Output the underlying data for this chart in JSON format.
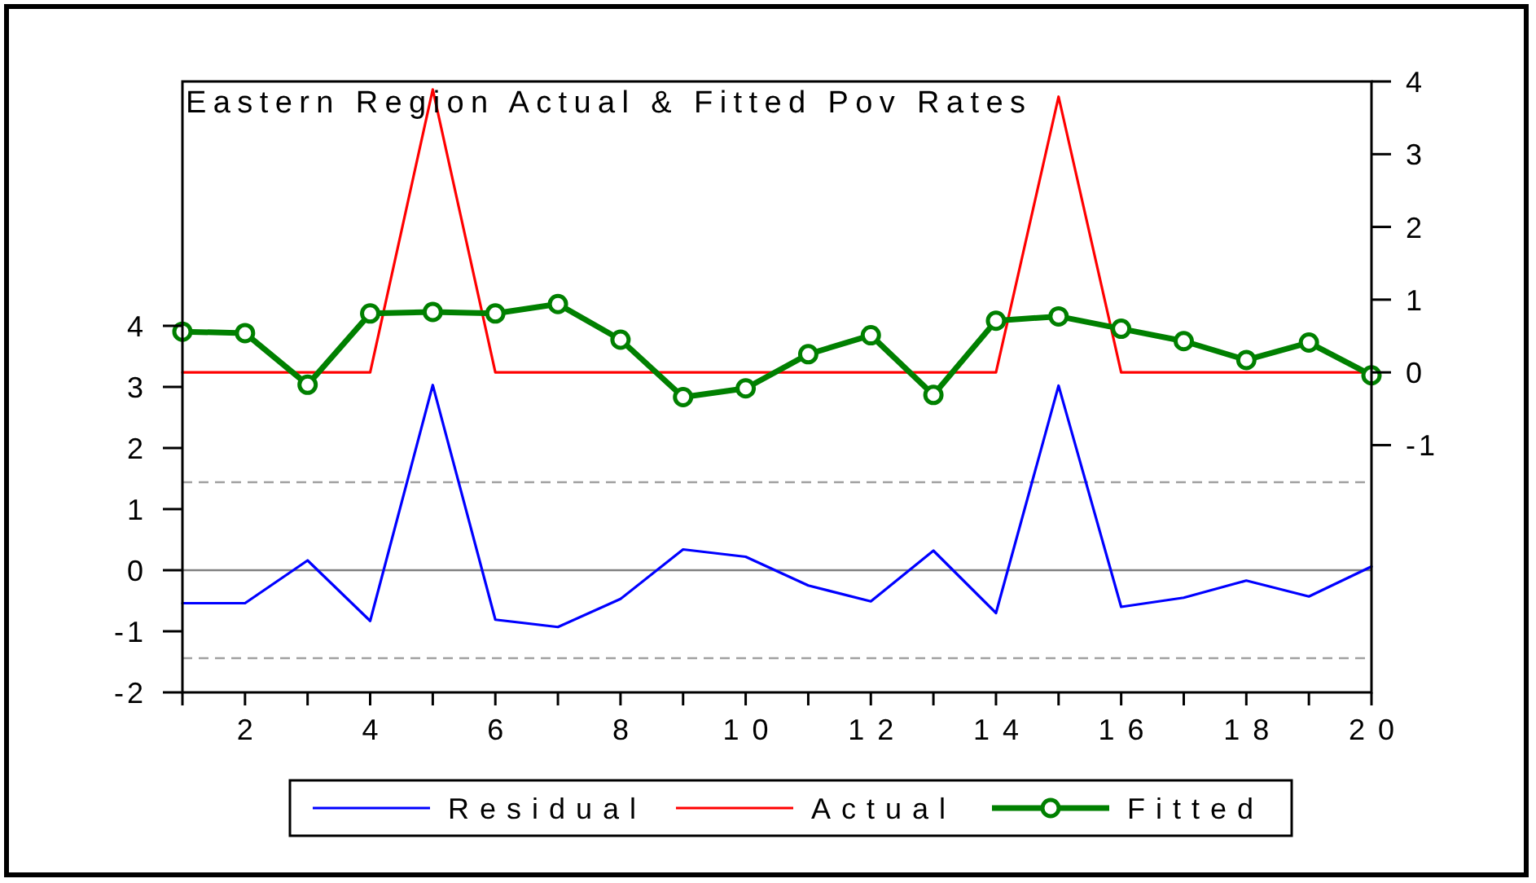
{
  "chart_data": {
    "type": "line",
    "title": "Eastern Region Actual & Fitted Pov Rates",
    "x": [
      1,
      2,
      3,
      4,
      5,
      6,
      7,
      8,
      9,
      10,
      11,
      12,
      13,
      14,
      15,
      16,
      17,
      18,
      19,
      20
    ],
    "series": [
      {
        "name": "Residual",
        "color": "#0000ff",
        "values": [
          -0.54,
          -0.54,
          0.16,
          -0.83,
          3.03,
          -0.81,
          -0.93,
          -0.47,
          0.34,
          0.22,
          -0.25,
          -0.51,
          0.32,
          -0.7,
          3.02,
          -0.6,
          -0.45,
          -0.17,
          -0.43,
          0.06
        ]
      },
      {
        "name": "Actual",
        "color": "#ff0000",
        "axis": "y2",
        "values": [
          0,
          0,
          0,
          0,
          3.89,
          0,
          0,
          0,
          0,
          0,
          0,
          0,
          0,
          0,
          3.79,
          0,
          0,
          0,
          0,
          0
        ]
      },
      {
        "name": "Fitted",
        "color": "#008000",
        "axis": "y2",
        "marker": "circle",
        "values": [
          0.56,
          0.54,
          -0.17,
          0.81,
          0.83,
          0.81,
          0.94,
          0.45,
          -0.34,
          -0.22,
          0.25,
          0.51,
          -0.31,
          0.71,
          0.77,
          0.6,
          0.43,
          0.17,
          0.41,
          -0.04
        ]
      }
    ],
    "xlim": [
      1,
      20
    ],
    "xticks": [
      {
        "value": 1,
        "label": null
      },
      2,
      {
        "value": 3,
        "label": null
      },
      4,
      {
        "value": 5,
        "label": null
      },
      6,
      {
        "value": 7,
        "label": null
      },
      8,
      {
        "value": 9,
        "label": null
      },
      10,
      {
        "value": 11,
        "label": null
      },
      12,
      {
        "value": 13,
        "label": null
      },
      14,
      {
        "value": 15,
        "label": null
      },
      16,
      {
        "value": 17,
        "label": null
      },
      18,
      {
        "value": 19,
        "label": null
      },
      20
    ],
    "ylim": [
      -2,
      8
    ],
    "yticks": [
      -2,
      -1,
      0,
      1,
      2,
      3,
      4
    ],
    "y2lim": [
      -4.4,
      4
    ],
    "y2ticks": [
      -1,
      0,
      1,
      2,
      3,
      4
    ],
    "ref_lines": [
      {
        "axis": "y",
        "value": 0,
        "color": "#808080",
        "line_style": "solid"
      },
      {
        "axis": "y",
        "value": 1.44,
        "color": "#a0a0a0",
        "line_style": "dashed"
      },
      {
        "axis": "y",
        "value": -1.44,
        "color": "#a0a0a0",
        "line_style": "dashed"
      }
    ],
    "legend": "bottom"
  }
}
